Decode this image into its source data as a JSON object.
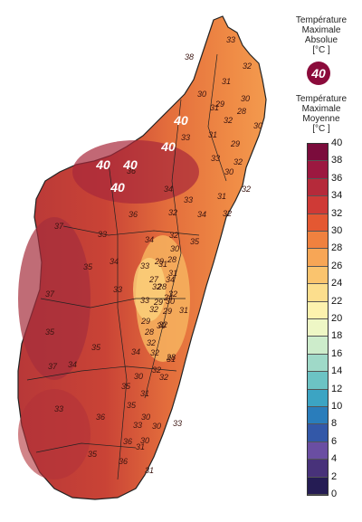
{
  "legend": {
    "absolute_title": [
      "Température",
      "Maximale",
      "Absolue",
      "[°C ]"
    ],
    "absolute_badge": "40",
    "mean_title": [
      "Température",
      "Maximale",
      "Moyenne",
      "[°C ]"
    ],
    "scale": [
      {
        "value": "40",
        "color": "#7b0c3c"
      },
      {
        "value": "38",
        "color": "#9c1840"
      },
      {
        "value": "36",
        "color": "#b52a3a"
      },
      {
        "value": "34",
        "color": "#cf3a36"
      },
      {
        "value": "32",
        "color": "#e45832"
      },
      {
        "value": "30",
        "color": "#f0813f"
      },
      {
        "value": "28",
        "color": "#f7a656"
      },
      {
        "value": "26",
        "color": "#fac46e"
      },
      {
        "value": "24",
        "color": "#fcde8d"
      },
      {
        "value": "22",
        "color": "#fdf2ae"
      },
      {
        "value": "20",
        "color": "#eef7c5"
      },
      {
        "value": "18",
        "color": "#cdeccb"
      },
      {
        "value": "16",
        "color": "#9fd9c8"
      },
      {
        "value": "14",
        "color": "#6cc3c4"
      },
      {
        "value": "12",
        "color": "#3ca4c3"
      },
      {
        "value": "10",
        "color": "#2a7dbb"
      },
      {
        "value": "8",
        "color": "#3358a8"
      },
      {
        "value": "6",
        "color": "#6a4ea2"
      },
      {
        "value": "4",
        "color": "#48327a"
      },
      {
        "value": "2",
        "color": "#251c54"
      }
    ],
    "min_label": "0"
  },
  "map": {
    "absolute_max_markers": [
      "40",
      "40",
      "40",
      "40",
      "40"
    ],
    "mean_labels": [
      "33",
      "38",
      "32",
      "31",
      "30",
      "30",
      "29",
      "31",
      "28",
      "30",
      "32",
      "31",
      "29",
      "33",
      "33",
      "32",
      "36",
      "30",
      "31",
      "32",
      "34",
      "32",
      "34",
      "33",
      "32",
      "35",
      "36",
      "32",
      "33",
      "34",
      "30",
      "31",
      "37",
      "33",
      "35",
      "32",
      "32",
      "34",
      "37",
      "35",
      "33",
      "34",
      "37",
      "35",
      "33",
      "34",
      "35",
      "32",
      "31",
      "33",
      "32",
      "30",
      "34",
      "31",
      "32",
      "36",
      "35",
      "36",
      "31",
      "36",
      "33",
      "33",
      "35",
      "32",
      "30",
      "32",
      "31",
      "30",
      "29",
      "28",
      "24",
      "27",
      "29",
      "28",
      "29",
      "29",
      "30",
      "31",
      "30",
      "30",
      "28",
      "28",
      "31",
      "32"
    ]
  }
}
